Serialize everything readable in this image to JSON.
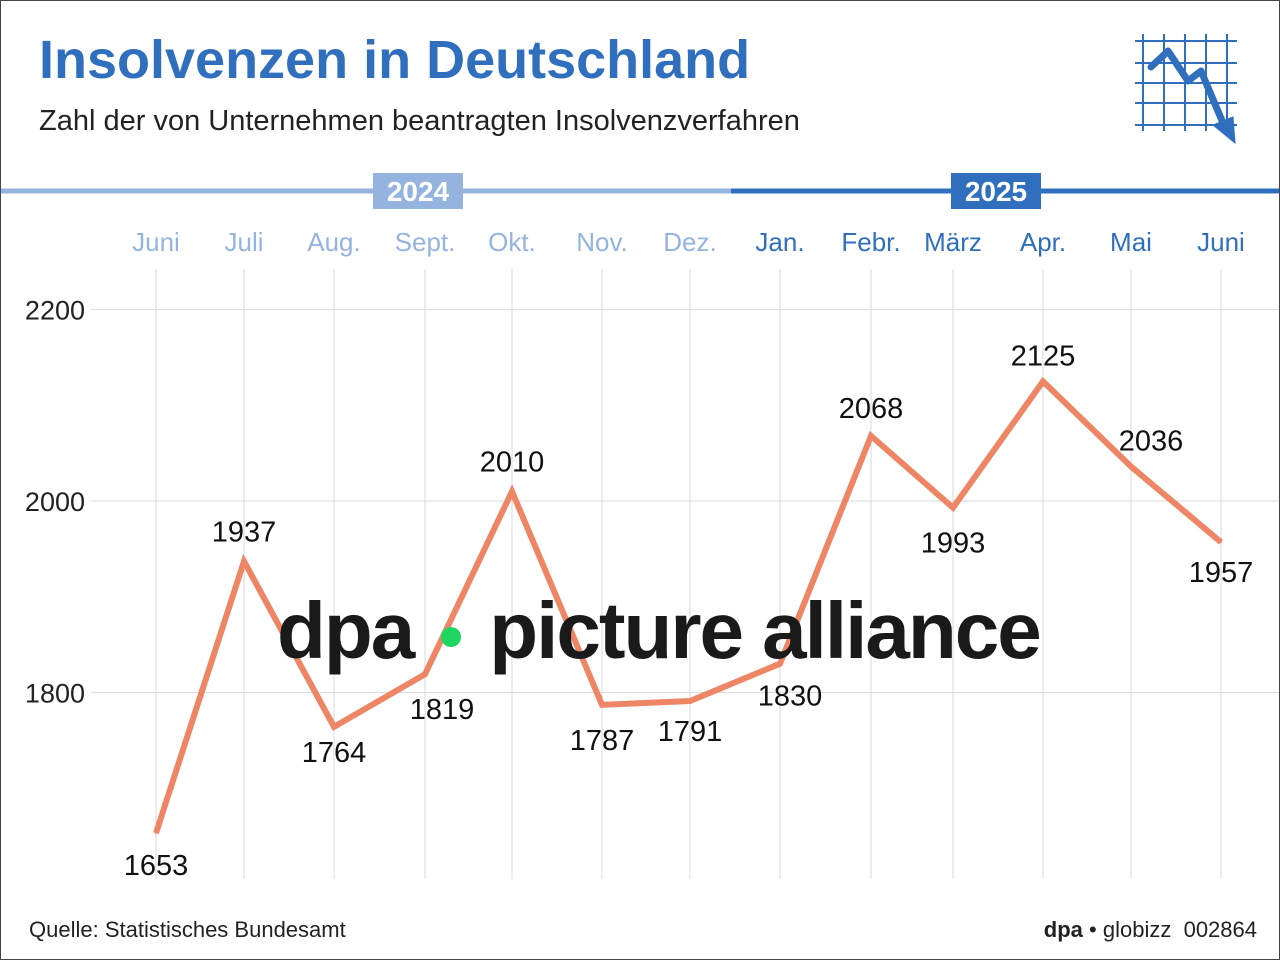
{
  "header": {
    "title": "Insolvenzen in Deutschland",
    "subtitle": "Zahl der von Unternehmen beantragten Insolvenzverfahren"
  },
  "footer": {
    "source": "Quelle: Statistisches Bundesamt",
    "brand": "dpa",
    "brand2": "globizz",
    "id": "002864"
  },
  "watermark": {
    "left": "dpa",
    "right": "picture alliance"
  },
  "colors": {
    "blue": "#2f6fbd",
    "light_blue": "#94b3df",
    "line": "#ee8565",
    "grid": "#d9d9d9"
  },
  "icon": "chart-down-icon",
  "chart_data": {
    "type": "line",
    "title": "Insolvenzen in Deutschland",
    "years": [
      {
        "label": "2024",
        "months": 7
      },
      {
        "label": "2025",
        "months": 6
      }
    ],
    "categories": [
      "Juni",
      "Juli",
      "Aug.",
      "Sept.",
      "Okt.",
      "Nov.",
      "Dez.",
      "Jan.",
      "Febr.",
      "März",
      "Apr.",
      "Mai",
      "Juni"
    ],
    "values": [
      1653,
      1937,
      1764,
      1819,
      2010,
      1787,
      1791,
      1830,
      2068,
      1993,
      2125,
      2036,
      1957
    ],
    "yticks": [
      1800,
      2000,
      2200
    ],
    "ylim": [
      1620,
      2260
    ],
    "grid": true
  }
}
